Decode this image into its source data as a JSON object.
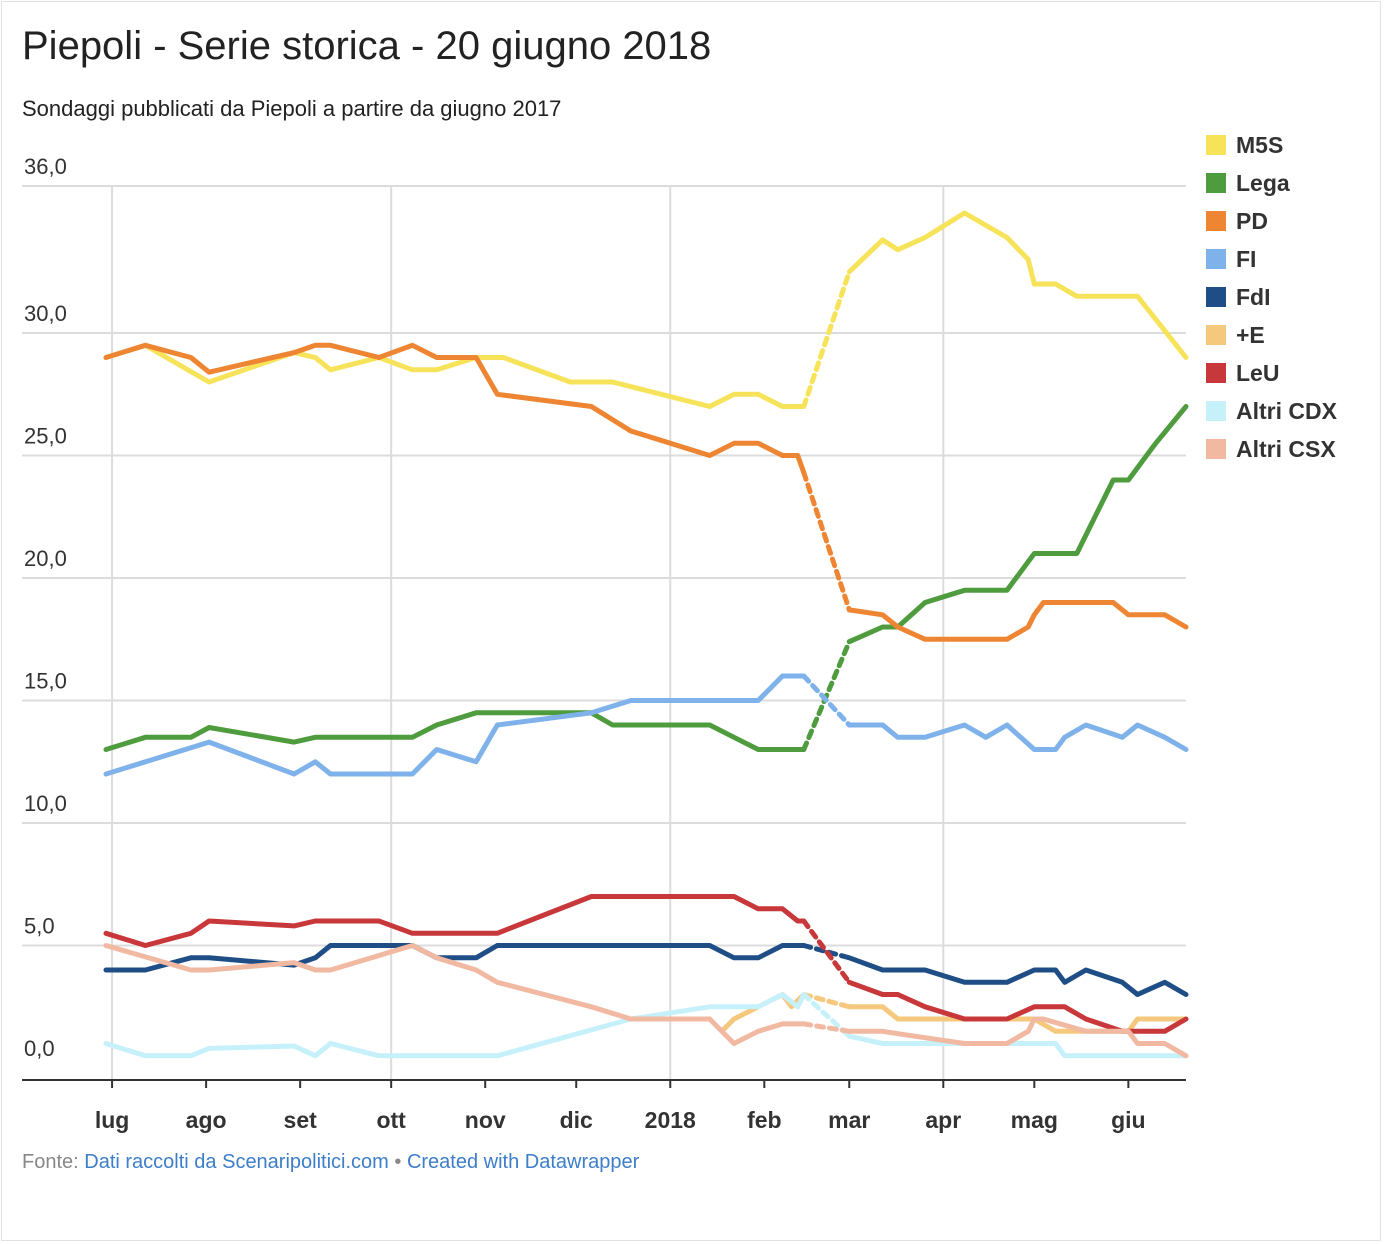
{
  "title": "Piepoli - Serie storica - 20 giugno 2018",
  "subtitle": "Sondaggi pubblicati da Piepoli a partire da giugno 2017",
  "footer": {
    "prefix": "Fonte: ",
    "source": "Dati raccolti da Scenaripolitici.com",
    "separator": " • ",
    "credit": "Created with Datawrapper"
  },
  "chart_data": {
    "type": "line",
    "title": "Piepoli - Serie storica - 20 giugno 2018",
    "subtitle": "Sondaggi pubblicati da Piepoli a partire da giugno 2017",
    "xlabel": "",
    "ylabel": "",
    "ylim": [
      0,
      36
    ],
    "yticks": [
      0,
      5,
      10,
      15,
      20,
      25,
      30,
      36
    ],
    "ytick_labels": [
      "0,0",
      "5,0",
      "10,0",
      "15,0",
      "20,0",
      "25,0",
      "30,0",
      "36,0"
    ],
    "xlim": [
      "2017-06-29",
      "2018-06-20"
    ],
    "xticks": [
      {
        "date": "2017-07-01",
        "label": "lug"
      },
      {
        "date": "2017-08-01",
        "label": "ago"
      },
      {
        "date": "2017-09-01",
        "label": "set"
      },
      {
        "date": "2017-10-01",
        "label": "ott"
      },
      {
        "date": "2017-11-01",
        "label": "nov"
      },
      {
        "date": "2017-12-01",
        "label": "dic"
      },
      {
        "date": "2018-01-01",
        "label": "2018"
      },
      {
        "date": "2018-02-01",
        "label": "feb"
      },
      {
        "date": "2018-03-01",
        "label": "mar"
      },
      {
        "date": "2018-04-01",
        "label": "apr"
      },
      {
        "date": "2018-05-01",
        "label": "mag"
      },
      {
        "date": "2018-06-01",
        "label": "giu"
      }
    ],
    "gridlines": {
      "horizontal": true,
      "vertical_dates": [
        "2017-07-01",
        "2017-10-01",
        "2018-01-01",
        "2018-04-01"
      ]
    },
    "legend_position": "right",
    "gap": {
      "start": "2018-02-14",
      "end": "2018-03-01",
      "style": "dashed"
    },
    "series": [
      {
        "name": "M5S",
        "color": "#f7e35a",
        "points": [
          [
            "2017-06-29",
            29
          ],
          [
            "2017-07-12",
            29.5
          ],
          [
            "2017-08-02",
            28
          ],
          [
            "2017-08-30",
            29.2
          ],
          [
            "2017-09-06",
            29
          ],
          [
            "2017-09-11",
            28.5
          ],
          [
            "2017-09-27",
            29
          ],
          [
            "2017-10-08",
            28.5
          ],
          [
            "2017-10-16",
            28.5
          ],
          [
            "2017-10-29",
            29
          ],
          [
            "2017-11-07",
            29
          ],
          [
            "2017-11-29",
            28
          ],
          [
            "2017-12-13",
            28
          ],
          [
            "2018-01-14",
            27
          ],
          [
            "2018-01-22",
            27.5
          ],
          [
            "2018-01-30",
            27.5
          ],
          [
            "2018-02-07",
            27
          ],
          [
            "2018-02-14",
            27
          ],
          [
            "2018-03-01",
            32.5
          ],
          [
            "2018-03-12",
            33.8
          ],
          [
            "2018-03-17",
            33.4
          ],
          [
            "2018-03-26",
            33.9
          ],
          [
            "2018-04-08",
            34.9
          ],
          [
            "2018-04-22",
            33.9
          ],
          [
            "2018-04-29",
            33
          ],
          [
            "2018-05-01",
            32
          ],
          [
            "2018-05-08",
            32
          ],
          [
            "2018-05-15",
            31.5
          ],
          [
            "2018-06-04",
            31.5
          ],
          [
            "2018-06-20",
            29
          ]
        ]
      },
      {
        "name": "Lega",
        "color": "#4f9c3f",
        "points": [
          [
            "2017-06-29",
            13
          ],
          [
            "2017-07-12",
            13.5
          ],
          [
            "2017-07-27",
            13.5
          ],
          [
            "2017-08-02",
            13.9
          ],
          [
            "2017-08-30",
            13.3
          ],
          [
            "2017-09-06",
            13.5
          ],
          [
            "2017-10-08",
            13.5
          ],
          [
            "2017-10-16",
            14
          ],
          [
            "2017-10-29",
            14.5
          ],
          [
            "2017-12-06",
            14.5
          ],
          [
            "2017-12-13",
            14
          ],
          [
            "2018-01-14",
            14
          ],
          [
            "2018-01-22",
            13.5
          ],
          [
            "2018-01-30",
            13
          ],
          [
            "2018-02-14",
            13
          ],
          [
            "2018-03-01",
            17.4
          ],
          [
            "2018-03-12",
            18
          ],
          [
            "2018-03-17",
            18
          ],
          [
            "2018-03-26",
            19
          ],
          [
            "2018-04-08",
            19.5
          ],
          [
            "2018-04-22",
            19.5
          ],
          [
            "2018-05-01",
            21
          ],
          [
            "2018-05-15",
            21
          ],
          [
            "2018-05-27",
            24
          ],
          [
            "2018-06-01",
            24
          ],
          [
            "2018-06-10",
            25.5
          ],
          [
            "2018-06-20",
            27
          ]
        ]
      },
      {
        "name": "PD",
        "color": "#ee8532",
        "points": [
          [
            "2017-06-29",
            29
          ],
          [
            "2017-07-12",
            29.5
          ],
          [
            "2017-07-27",
            29
          ],
          [
            "2017-08-02",
            28.4
          ],
          [
            "2017-08-30",
            29.2
          ],
          [
            "2017-09-06",
            29.5
          ],
          [
            "2017-09-11",
            29.5
          ],
          [
            "2017-09-27",
            29
          ],
          [
            "2017-10-08",
            29.5
          ],
          [
            "2017-10-16",
            29
          ],
          [
            "2017-10-29",
            29
          ],
          [
            "2017-11-05",
            27.5
          ],
          [
            "2017-12-06",
            27
          ],
          [
            "2017-12-19",
            26
          ],
          [
            "2018-01-14",
            25
          ],
          [
            "2018-01-22",
            25.5
          ],
          [
            "2018-01-30",
            25.5
          ],
          [
            "2018-02-07",
            25
          ],
          [
            "2018-02-12",
            25
          ],
          [
            "2018-02-14",
            24.3
          ],
          [
            "2018-03-01",
            18.7
          ],
          [
            "2018-03-12",
            18.5
          ],
          [
            "2018-03-17",
            18
          ],
          [
            "2018-03-26",
            17.5
          ],
          [
            "2018-04-22",
            17.5
          ],
          [
            "2018-04-29",
            18
          ],
          [
            "2018-05-01",
            18.5
          ],
          [
            "2018-05-04",
            19
          ],
          [
            "2018-05-27",
            19
          ],
          [
            "2018-06-01",
            18.5
          ],
          [
            "2018-06-13",
            18.5
          ],
          [
            "2018-06-20",
            18
          ]
        ]
      },
      {
        "name": "FI",
        "color": "#7fb2ea",
        "points": [
          [
            "2017-06-29",
            12
          ],
          [
            "2017-08-02",
            13.3
          ],
          [
            "2017-08-30",
            12
          ],
          [
            "2017-09-06",
            12.5
          ],
          [
            "2017-09-11",
            12
          ],
          [
            "2017-10-08",
            12
          ],
          [
            "2017-10-16",
            13
          ],
          [
            "2017-10-29",
            12.5
          ],
          [
            "2017-11-05",
            14
          ],
          [
            "2017-12-06",
            14.5
          ],
          [
            "2017-12-19",
            15
          ],
          [
            "2018-01-30",
            15
          ],
          [
            "2018-02-07",
            16
          ],
          [
            "2018-02-14",
            16
          ],
          [
            "2018-03-01",
            14
          ],
          [
            "2018-03-12",
            14
          ],
          [
            "2018-03-17",
            13.5
          ],
          [
            "2018-03-26",
            13.5
          ],
          [
            "2018-04-08",
            14
          ],
          [
            "2018-04-15",
            13.5
          ],
          [
            "2018-04-22",
            14
          ],
          [
            "2018-05-01",
            13
          ],
          [
            "2018-05-08",
            13
          ],
          [
            "2018-05-11",
            13.5
          ],
          [
            "2018-05-18",
            14
          ],
          [
            "2018-05-30",
            13.5
          ],
          [
            "2018-06-04",
            14
          ],
          [
            "2018-06-13",
            13.5
          ],
          [
            "2018-06-20",
            13
          ]
        ]
      },
      {
        "name": "FdI",
        "color": "#1f4e87",
        "points": [
          [
            "2017-06-29",
            4
          ],
          [
            "2017-07-12",
            4
          ],
          [
            "2017-07-27",
            4.5
          ],
          [
            "2017-08-02",
            4.5
          ],
          [
            "2017-08-30",
            4.2
          ],
          [
            "2017-09-06",
            4.5
          ],
          [
            "2017-09-11",
            5
          ],
          [
            "2017-09-27",
            5
          ],
          [
            "2017-10-08",
            5
          ],
          [
            "2017-10-16",
            4.5
          ],
          [
            "2017-10-29",
            4.5
          ],
          [
            "2017-11-05",
            5
          ],
          [
            "2018-01-14",
            5
          ],
          [
            "2018-01-22",
            4.5
          ],
          [
            "2018-01-30",
            4.5
          ],
          [
            "2018-02-07",
            5
          ],
          [
            "2018-02-14",
            5
          ],
          [
            "2018-03-01",
            4.5
          ],
          [
            "2018-03-12",
            4
          ],
          [
            "2018-03-26",
            4
          ],
          [
            "2018-04-08",
            3.5
          ],
          [
            "2018-04-22",
            3.5
          ],
          [
            "2018-05-01",
            4
          ],
          [
            "2018-05-08",
            4
          ],
          [
            "2018-05-11",
            3.5
          ],
          [
            "2018-05-18",
            4
          ],
          [
            "2018-05-30",
            3.5
          ],
          [
            "2018-06-04",
            3
          ],
          [
            "2018-06-13",
            3.5
          ],
          [
            "2018-06-20",
            3
          ]
        ]
      },
      {
        "name": "+E",
        "color": "#f6c87e",
        "points": [
          [
            "2018-01-18",
            1.5
          ],
          [
            "2018-01-22",
            2
          ],
          [
            "2018-01-30",
            2.5
          ],
          [
            "2018-02-07",
            3
          ],
          [
            "2018-02-10",
            2.5
          ],
          [
            "2018-02-14",
            3
          ],
          [
            "2018-03-01",
            2.5
          ],
          [
            "2018-03-12",
            2.5
          ],
          [
            "2018-03-17",
            2
          ],
          [
            "2018-04-22",
            2
          ],
          [
            "2018-04-29",
            2
          ],
          [
            "2018-05-01",
            2
          ],
          [
            "2018-05-08",
            1.5
          ],
          [
            "2018-06-01",
            1.5
          ],
          [
            "2018-06-04",
            2
          ],
          [
            "2018-06-20",
            2
          ]
        ]
      },
      {
        "name": "LeU",
        "color": "#c8373a",
        "points": [
          [
            "2017-06-29",
            5.5
          ],
          [
            "2017-07-12",
            5
          ],
          [
            "2017-07-27",
            5.5
          ],
          [
            "2017-08-02",
            6
          ],
          [
            "2017-08-30",
            5.8
          ],
          [
            "2017-09-06",
            6
          ],
          [
            "2017-09-27",
            6
          ],
          [
            "2017-10-08",
            5.5
          ],
          [
            "2017-10-29",
            5.5
          ],
          [
            "2017-11-05",
            5.5
          ],
          [
            "2017-12-06",
            7
          ],
          [
            "2018-01-22",
            7
          ],
          [
            "2018-01-30",
            6.5
          ],
          [
            "2018-02-07",
            6.5
          ],
          [
            "2018-02-12",
            6
          ],
          [
            "2018-02-14",
            6
          ],
          [
            "2018-03-01",
            3.5
          ],
          [
            "2018-03-12",
            3
          ],
          [
            "2018-03-17",
            3
          ],
          [
            "2018-03-26",
            2.5
          ],
          [
            "2018-04-08",
            2
          ],
          [
            "2018-04-22",
            2
          ],
          [
            "2018-05-01",
            2.5
          ],
          [
            "2018-05-11",
            2.5
          ],
          [
            "2018-05-18",
            2
          ],
          [
            "2018-05-30",
            1.5
          ],
          [
            "2018-06-13",
            1.5
          ],
          [
            "2018-06-20",
            2
          ]
        ]
      },
      {
        "name": "Altri CDX",
        "color": "#c6f1fb",
        "points": [
          [
            "2017-06-29",
            1
          ],
          [
            "2017-07-12",
            0.5
          ],
          [
            "2017-07-27",
            0.5
          ],
          [
            "2017-08-02",
            0.8
          ],
          [
            "2017-08-30",
            0.9
          ],
          [
            "2017-09-06",
            0.5
          ],
          [
            "2017-09-11",
            1
          ],
          [
            "2017-09-27",
            0.5
          ],
          [
            "2017-11-05",
            0.5
          ],
          [
            "2017-12-19",
            2
          ],
          [
            "2018-01-14",
            2.5
          ],
          [
            "2018-01-30",
            2.5
          ],
          [
            "2018-02-07",
            3
          ],
          [
            "2018-02-12",
            2.5
          ],
          [
            "2018-02-14",
            3
          ],
          [
            "2018-03-01",
            1.3
          ],
          [
            "2018-03-12",
            1
          ],
          [
            "2018-04-22",
            1
          ],
          [
            "2018-05-08",
            1
          ],
          [
            "2018-05-11",
            0.5
          ],
          [
            "2018-06-20",
            0.5
          ]
        ]
      },
      {
        "name": "Altri CSX",
        "color": "#f2b9a2",
        "points": [
          [
            "2017-06-29",
            5
          ],
          [
            "2017-07-27",
            4
          ],
          [
            "2017-08-02",
            4
          ],
          [
            "2017-08-30",
            4.3
          ],
          [
            "2017-09-06",
            4
          ],
          [
            "2017-09-11",
            4
          ],
          [
            "2017-10-08",
            5
          ],
          [
            "2017-10-16",
            4.5
          ],
          [
            "2017-10-29",
            4
          ],
          [
            "2017-11-05",
            3.5
          ],
          [
            "2017-12-06",
            2.5
          ],
          [
            "2017-12-19",
            2
          ],
          [
            "2018-01-14",
            2
          ],
          [
            "2018-01-22",
            1
          ],
          [
            "2018-01-30",
            1.5
          ],
          [
            "2018-02-07",
            1.8
          ],
          [
            "2018-02-14",
            1.8
          ],
          [
            "2018-03-01",
            1.5
          ],
          [
            "2018-03-12",
            1.5
          ],
          [
            "2018-03-17",
            1.4
          ],
          [
            "2018-04-08",
            1
          ],
          [
            "2018-04-22",
            1
          ],
          [
            "2018-04-29",
            1.5
          ],
          [
            "2018-05-01",
            2
          ],
          [
            "2018-05-04",
            2
          ],
          [
            "2018-05-18",
            1.5
          ],
          [
            "2018-06-01",
            1.5
          ],
          [
            "2018-06-04",
            1
          ],
          [
            "2018-06-13",
            1
          ],
          [
            "2018-06-20",
            0.5
          ]
        ]
      }
    ]
  }
}
